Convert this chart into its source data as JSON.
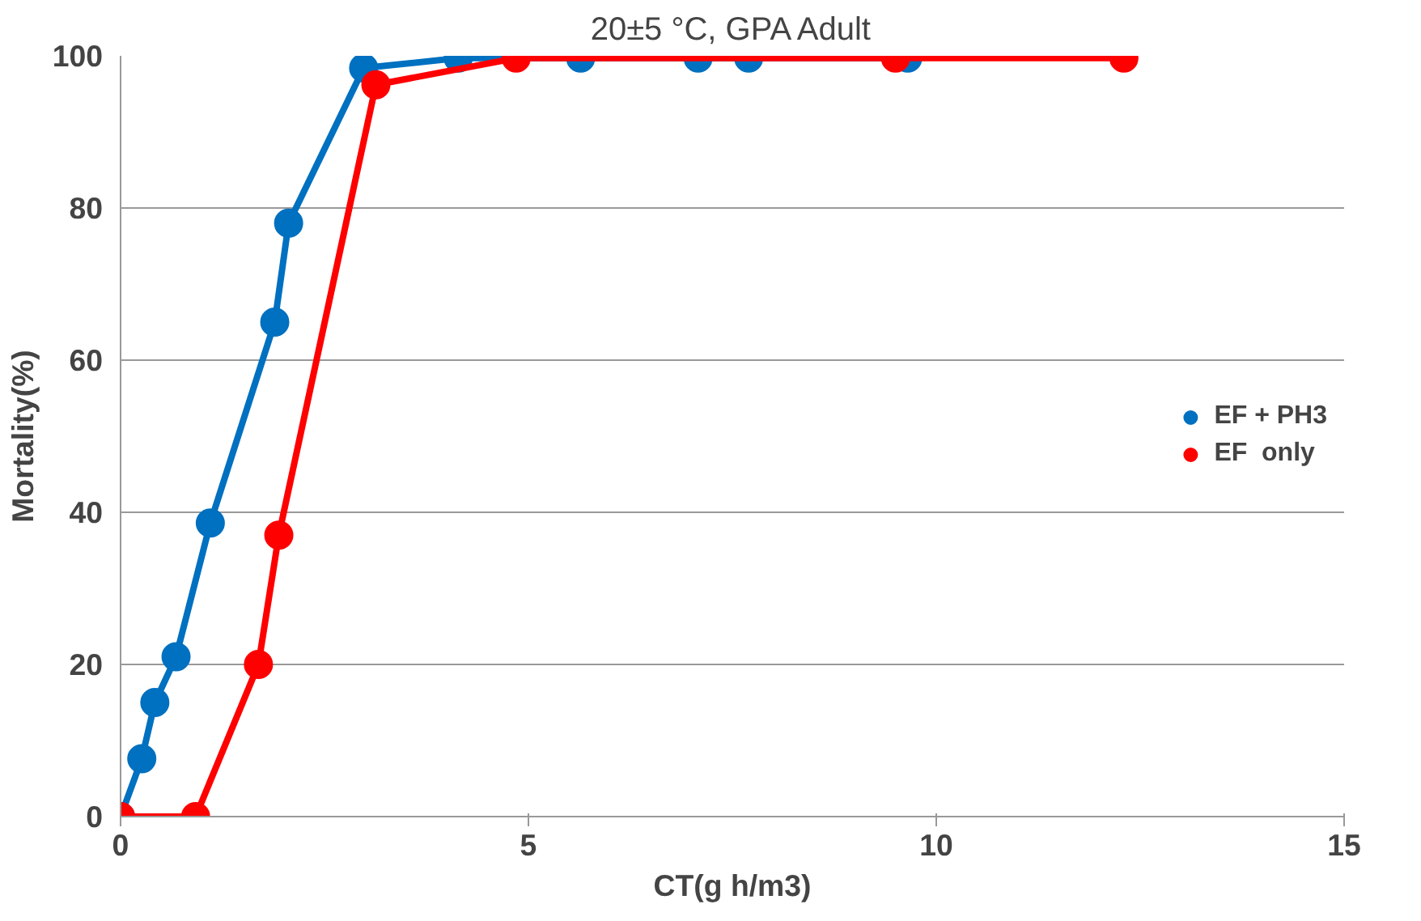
{
  "chart_data": {
    "type": "line",
    "title": "20±5 °C, GPA Adult",
    "xlabel": "CT(g h/m3)",
    "ylabel": "Mortality(%)",
    "xlim": [
      0,
      15
    ],
    "xticks": [
      0,
      5,
      10,
      15
    ],
    "ylim": [
      0,
      100
    ],
    "yticks": [
      0,
      20,
      40,
      60,
      80,
      100
    ],
    "grid": "y",
    "legend": "right",
    "marker": "circle",
    "line_style": "solid",
    "series": [
      {
        "name": "EF + PH3",
        "color": "#0070c0",
        "x": [
          0,
          0.26,
          0.42,
          0.68,
          1.1,
          1.89,
          2.06,
          2.98,
          4.14,
          5.64,
          7.08,
          7.7,
          9.65
        ],
        "values": [
          0,
          7.6,
          15,
          21,
          38.6,
          65,
          78,
          98.4,
          99.7,
          99.7,
          99.7,
          99.7,
          99.7
        ]
      },
      {
        "name": "EF  only",
        "color": "#ff0000",
        "x": [
          0,
          0.92,
          1.69,
          1.94,
          3.13,
          4.85,
          9.5,
          12.3
        ],
        "values": [
          0,
          0,
          20,
          37,
          96.2,
          99.7,
          99.7,
          99.7
        ]
      }
    ]
  }
}
